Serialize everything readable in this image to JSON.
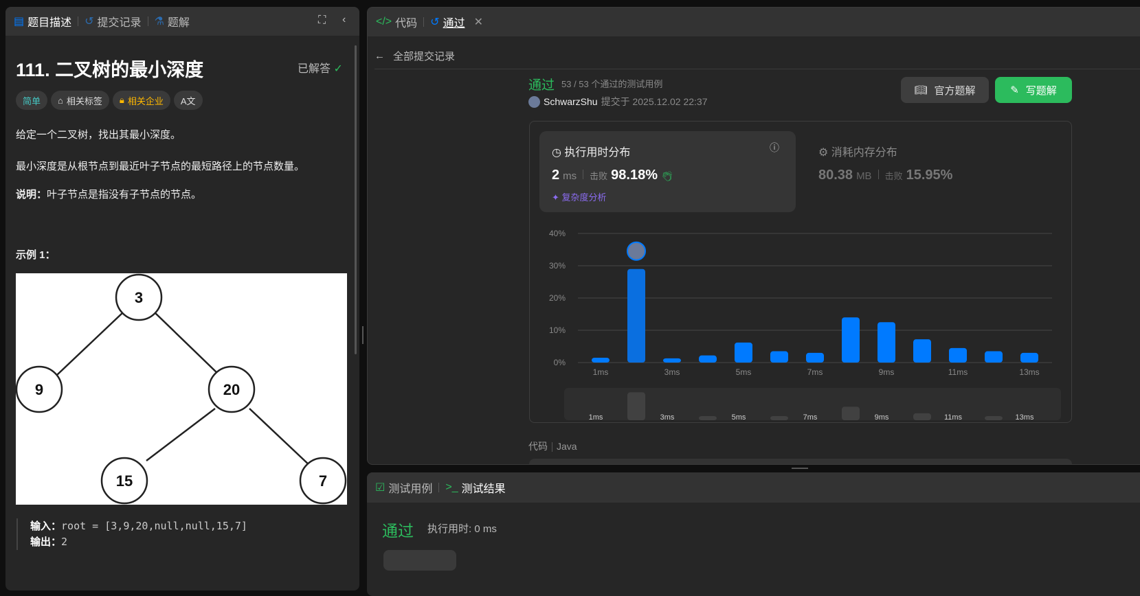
{
  "left": {
    "tabs": [
      {
        "label": "题目描述",
        "icon": "description-icon"
      },
      {
        "label": "提交记录",
        "icon": "history-icon"
      },
      {
        "label": "题解",
        "icon": "flask-icon"
      }
    ],
    "title": "111. 二叉树的最小深度",
    "solved_label": "已解答",
    "tags": {
      "difficulty": "简单",
      "topics": "相关标签",
      "companies": "相关企业",
      "translate": "A文"
    },
    "desc1": "给定一个二叉树，找出其最小深度。",
    "desc2": "最小深度是从根节点到最近叶子节点的最短路径上的节点数量。",
    "note_label": "说明：",
    "note_text": "叶子节点是指没有子节点的节点。",
    "example_title": "示例 1：",
    "tree_nodes": [
      "3",
      "9",
      "20",
      "15",
      "7"
    ],
    "input_label": "输入：",
    "input_value": "root = [3,9,20,null,null,15,7]",
    "output_label": "输出：",
    "output_value": "2"
  },
  "right": {
    "tabs": [
      {
        "label": "代码",
        "icon": "code-icon"
      },
      {
        "label": "通过",
        "icon": "history-icon"
      }
    ],
    "back_label": "全部提交记录",
    "status": "通过",
    "cases": "53 / 53 个通过的测试用例",
    "user": "SchwarzShu",
    "submitted": "提交于 2025.12.02 22:37",
    "official_btn": "官方题解",
    "write_btn": "写题解",
    "runtime": {
      "title": "执行用时分布",
      "value": "2",
      "unit": "ms",
      "beat_label": "击败",
      "beat": "98.18%",
      "analysis": "复杂度分析"
    },
    "memory": {
      "title": "消耗内存分布",
      "value": "80.38",
      "unit": "MB",
      "beat_label": "击败",
      "beat": "15.95%"
    },
    "code_label": "代码",
    "lang": "Java"
  },
  "bottom": {
    "tabs": [
      {
        "label": "测试用例"
      },
      {
        "label": "测试结果"
      }
    ],
    "status": "通过",
    "runtime": "执行用时: 0 ms"
  },
  "colors": {
    "accent": "#007aff",
    "green": "#2cbb5d",
    "easy": "#46c6c2",
    "company": "#ffb800"
  },
  "chart_data": {
    "type": "bar",
    "categories": [
      "1ms",
      "2ms",
      "3ms",
      "4ms",
      "5ms",
      "6ms",
      "7ms",
      "8ms",
      "9ms",
      "10ms",
      "11ms",
      "12ms",
      "13ms"
    ],
    "values": [
      1.5,
      29,
      1.3,
      2.2,
      6.2,
      3.5,
      3,
      14,
      12.5,
      7.2,
      4.5,
      3.5,
      3
    ],
    "yticks": [
      "0%",
      "10%",
      "20%",
      "30%",
      "40%"
    ],
    "ylim": [
      0,
      40
    ],
    "xtick_labels": [
      "1ms",
      "3ms",
      "5ms",
      "7ms",
      "9ms",
      "11ms",
      "13ms"
    ],
    "highlight": "2ms",
    "grid": true
  }
}
